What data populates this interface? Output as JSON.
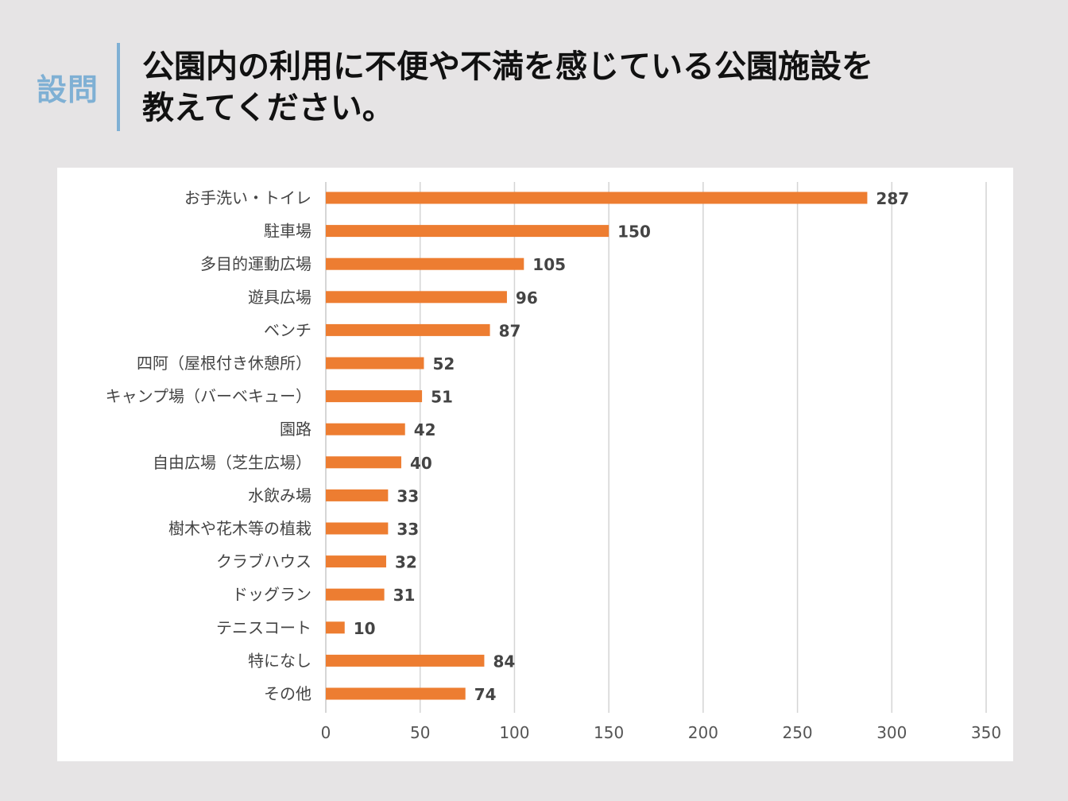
{
  "header": {
    "label": "設問",
    "question_line1": "公園内の利用に不便や不満を感じている公園施設を",
    "question_line2": "教えてください。"
  },
  "chart_data": {
    "type": "bar",
    "orientation": "horizontal",
    "title": "",
    "xlabel": "",
    "ylabel": "",
    "xlim": [
      0,
      350
    ],
    "xticks": [
      0,
      50,
      100,
      150,
      200,
      250,
      300,
      350
    ],
    "grid": "vertical",
    "bar_color": "#ed7d31",
    "categories": [
      "お手洗い・トイレ",
      "駐車場",
      "多目的運動広場",
      "遊具広場",
      "ベンチ",
      "四阿（屋根付き休憩所）",
      "キャンプ場（バーベキュー）",
      "園路",
      "自由広場（芝生広場）",
      "水飲み場",
      "樹木や花木等の植栽",
      "クラブハウス",
      "ドッグラン",
      "テニスコート",
      "特になし",
      "その他"
    ],
    "values": [
      287,
      150,
      105,
      96,
      87,
      52,
      51,
      42,
      40,
      33,
      33,
      32,
      31,
      10,
      84,
      74
    ]
  }
}
